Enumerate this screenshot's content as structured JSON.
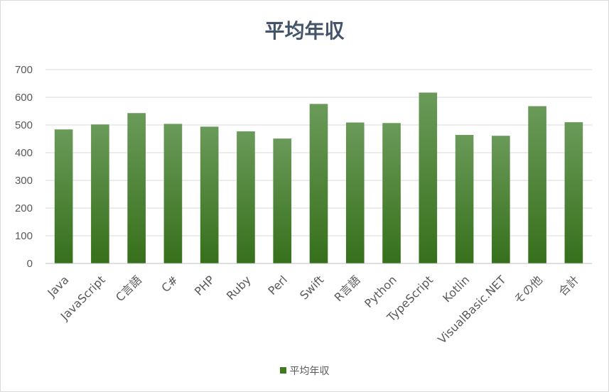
{
  "chart_data": {
    "type": "bar",
    "title": "平均年収",
    "categories": [
      "Java",
      "JavaScript",
      "C言語",
      "C#",
      "PHP",
      "Ruby",
      "Perl",
      "Swift",
      "R言語",
      "Python",
      "TypeScript",
      "Kotlin",
      "VisualBasic.NET",
      "その他",
      "合計"
    ],
    "series": [
      {
        "name": "平均年収",
        "values": [
          484,
          502,
          543,
          504,
          494,
          477,
          451,
          576,
          509,
          507,
          617,
          464,
          461,
          568,
          510
        ]
      }
    ],
    "ylim": [
      0,
      700
    ],
    "yticks": [
      0,
      100,
      200,
      300,
      400,
      500,
      600,
      700
    ],
    "xlabel": "",
    "ylabel": "",
    "grid": true,
    "legend_position": "bottom",
    "colors": {
      "bar_top": "#6a9a59",
      "bar_bottom": "#36701b",
      "grid": "#d9d9d9",
      "text": "#595959",
      "title": "#44546a"
    }
  }
}
